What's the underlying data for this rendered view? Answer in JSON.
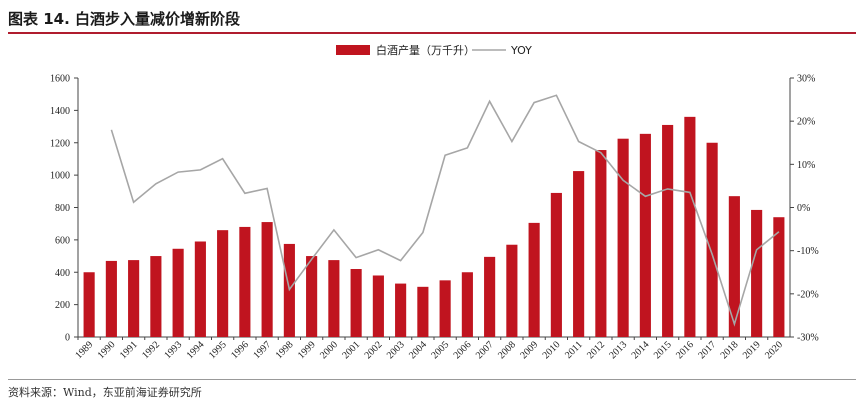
{
  "header": {
    "title": "图表 14. 白酒步入量减价增新阶段"
  },
  "footer": {
    "source": "资料来源：Wind，东亚前海证券研究所"
  },
  "colors": {
    "bar": "#c0141f",
    "line": "#a6a6a6",
    "accent": "#b01c2e"
  },
  "chart_data": {
    "type": "bar",
    "title": "",
    "categories": [
      "1989",
      "1990",
      "1991",
      "1992",
      "1993",
      "1994",
      "1995",
      "1996",
      "1997",
      "1998",
      "1999",
      "2000",
      "2001",
      "2002",
      "2003",
      "2004",
      "2005",
      "2006",
      "2007",
      "2008",
      "2009",
      "2010",
      "2011",
      "2012",
      "2013",
      "2014",
      "2015",
      "2016",
      "2017",
      "2018",
      "2019",
      "2020"
    ],
    "series": [
      {
        "name": "白酒产量（万千升）",
        "type": "bar",
        "axis": "left",
        "values": [
          400,
          470,
          475,
          500,
          545,
          590,
          660,
          680,
          710,
          575,
          500,
          475,
          420,
          380,
          330,
          310,
          350,
          400,
          495,
          570,
          705,
          890,
          1025,
          1155,
          1225,
          1255,
          1310,
          1360,
          1200,
          870,
          785,
          740
        ]
      },
      {
        "name": "YOY",
        "type": "line",
        "axis": "right",
        "values": [
          null,
          18.0,
          1.2,
          5.5,
          8.2,
          8.7,
          11.3,
          3.3,
          4.4,
          -19.0,
          -12.0,
          -5.2,
          -11.6,
          -9.8,
          -12.3,
          -5.8,
          12.1,
          13.8,
          24.6,
          15.3,
          24.3,
          26.0,
          15.3,
          12.7,
          6.3,
          2.6,
          4.3,
          3.5,
          -10.8,
          -27.0,
          -9.8,
          -5.6
        ]
      }
    ],
    "yleft": {
      "ylim": [
        0,
        1600
      ],
      "ticks": [
        0,
        200,
        400,
        600,
        800,
        1000,
        1200,
        1400,
        1600
      ]
    },
    "yright": {
      "ylim": [
        -30,
        30
      ],
      "ticks": [
        "30%",
        "20%",
        "10%",
        "0%",
        "-10%",
        "-20%",
        "-30%"
      ],
      "tick_values": [
        30,
        20,
        10,
        0,
        -10,
        -20,
        -30
      ]
    },
    "legend": {
      "position": "top-center",
      "entries": [
        "白酒产量（万千升）",
        "YOY"
      ]
    },
    "grid": false
  }
}
